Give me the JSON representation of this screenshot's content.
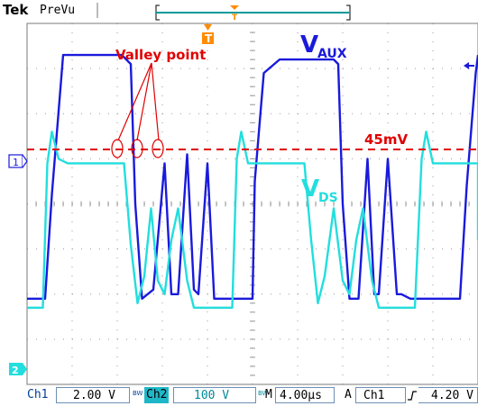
{
  "header": {
    "brand": "Tek",
    "mode": "PreVu",
    "trigger_marker": "T"
  },
  "annotations": {
    "valley_label": "Valley point",
    "aux_label_main": "V",
    "aux_label_sub": "AUX",
    "ds_label_main": "V",
    "ds_label_sub": "DS",
    "threshold_label": "45mV"
  },
  "channel_markers": {
    "ch1": "1",
    "ch2": "2"
  },
  "statusbar": {
    "ch1_label": "Ch1",
    "ch1_scale": "2.00 V",
    "bw_icon": "BW",
    "ch2_label": "Ch2",
    "ch2_scale": "100 V",
    "bw_icon2": "BW",
    "time_prefix": "M",
    "time_scale": "4.00µs",
    "acq_mode": "A",
    "trig_source": "Ch1",
    "trig_slope_icon": "rising-edge-icon",
    "trig_level": "4.20 V"
  },
  "colors": {
    "aux_trace": "#1a1adc",
    "ds_trace": "#22dede",
    "annotation_red": "#e00000",
    "grid": "#9a9a9a",
    "ch2_highlight": "#1fb7c8",
    "ch1_text": "#003f9a"
  },
  "chart_data": {
    "type": "line",
    "title": "",
    "xlabel": "",
    "ylabel": "",
    "time_per_div_us": 4,
    "divisions_x": 10,
    "divisions_y": 8,
    "threshold_mV": 45,
    "series": [
      {
        "name": "VAUX",
        "points_div": [
          [
            0,
            -2.1
          ],
          [
            0.4,
            -2.1
          ],
          [
            0.55,
            0.2
          ],
          [
            0.8,
            3.3
          ],
          [
            1.2,
            3.3
          ],
          [
            1.6,
            3.3
          ],
          [
            2.1,
            3.3
          ],
          [
            2.3,
            3.1
          ],
          [
            2.4,
            0
          ],
          [
            2.55,
            -2.1
          ],
          [
            2.8,
            -1.9
          ],
          [
            3.05,
            0.9
          ],
          [
            3.2,
            -2.0
          ],
          [
            3.35,
            -2.0
          ],
          [
            3.55,
            1.1
          ],
          [
            3.7,
            -1.9
          ],
          [
            3.8,
            -2.0
          ],
          [
            4.0,
            0.9
          ],
          [
            4.15,
            -2.1
          ],
          [
            4.6,
            -2.1
          ],
          [
            5.0,
            -2.1
          ],
          [
            5.05,
            0.5
          ],
          [
            5.25,
            2.9
          ],
          [
            5.6,
            3.2
          ],
          [
            6.8,
            3.2
          ],
          [
            6.9,
            3.1
          ],
          [
            7.0,
            0
          ],
          [
            7.15,
            -2.1
          ],
          [
            7.35,
            -2.1
          ],
          [
            7.55,
            1.0
          ],
          [
            7.7,
            -2.0
          ],
          [
            7.8,
            -2.0
          ],
          [
            8.0,
            1.0
          ],
          [
            8.2,
            -2.0
          ],
          [
            8.3,
            -2.0
          ],
          [
            8.5,
            -2.1
          ],
          [
            9.6,
            -2.1
          ],
          [
            9.75,
            0.4
          ],
          [
            9.95,
            2.9
          ],
          [
            10.3,
            3.3
          ]
        ]
      },
      {
        "name": "VDS",
        "points_div": [
          [
            0,
            -2.3
          ],
          [
            0.35,
            -2.3
          ],
          [
            0.45,
            0.9
          ],
          [
            0.55,
            1.6
          ],
          [
            0.7,
            1.0
          ],
          [
            0.9,
            0.9
          ],
          [
            2.0,
            0.9
          ],
          [
            2.15,
            0.9
          ],
          [
            2.3,
            -0.9
          ],
          [
            2.45,
            -2.2
          ],
          [
            2.6,
            -1.6
          ],
          [
            2.75,
            -0.1
          ],
          [
            2.9,
            -1.7
          ],
          [
            3.05,
            -2.0
          ],
          [
            3.2,
            -0.8
          ],
          [
            3.35,
            -0.1
          ],
          [
            3.55,
            -1.7
          ],
          [
            3.7,
            -2.3
          ],
          [
            4.3,
            -2.3
          ],
          [
            4.55,
            -2.3
          ],
          [
            4.65,
            1.0
          ],
          [
            4.75,
            1.6
          ],
          [
            4.9,
            0.9
          ],
          [
            6.0,
            0.9
          ],
          [
            6.15,
            0.9
          ],
          [
            6.3,
            -0.8
          ],
          [
            6.45,
            -2.2
          ],
          [
            6.6,
            -1.6
          ],
          [
            6.8,
            -0.1
          ],
          [
            7.0,
            -1.7
          ],
          [
            7.15,
            -2.0
          ],
          [
            7.3,
            -0.8
          ],
          [
            7.45,
            -0.1
          ],
          [
            7.65,
            -1.7
          ],
          [
            7.8,
            -2.3
          ],
          [
            8.4,
            -2.3
          ],
          [
            8.6,
            -2.3
          ],
          [
            8.75,
            1.0
          ],
          [
            8.85,
            1.6
          ],
          [
            9.0,
            0.9
          ],
          [
            10.2,
            0.9
          ],
          [
            10.3,
            0.9
          ],
          [
            10.45,
            -0.8
          ]
        ]
      }
    ]
  }
}
